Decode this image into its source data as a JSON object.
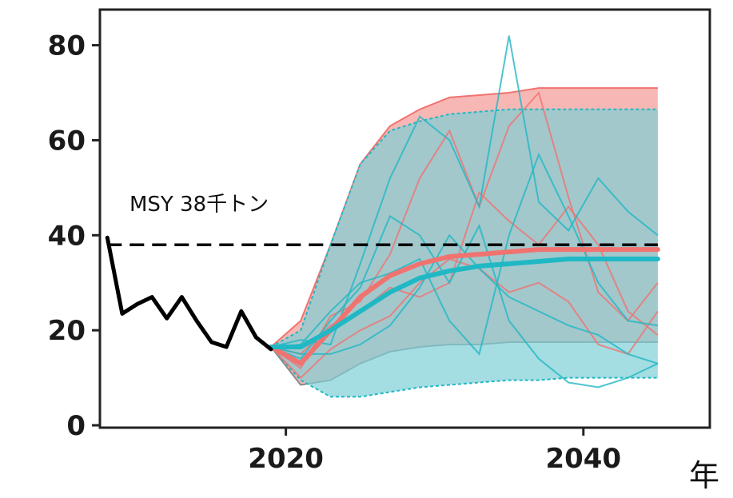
{
  "chart_data": {
    "type": "line",
    "title": "",
    "xlabel": "年",
    "ylabel": "",
    "xlim": [
      2007.5,
      2048.5
    ],
    "ylim": [
      -0.5,
      87.5
    ],
    "x_ticks": [
      2020,
      2040
    ],
    "y_ticks": [
      0,
      20,
      40,
      60,
      80
    ],
    "grid": false,
    "msy": {
      "label": "MSY 38千トン",
      "value": 38
    },
    "historical": {
      "color": "#000000",
      "x": [
        2008,
        2009,
        2010,
        2011,
        2012,
        2013,
        2014,
        2015,
        2016,
        2017,
        2018,
        2019
      ],
      "y": [
        39.5,
        23.5,
        25.5,
        27,
        22.5,
        27,
        22,
        17.5,
        16.5,
        24,
        18.5,
        16
      ]
    },
    "scenarios": [
      {
        "color": "#f07370",
        "band_color": "#f4a09c",
        "x": [
          2019,
          2021,
          2023,
          2025,
          2027,
          2029,
          2031,
          2033,
          2035,
          2037,
          2039,
          2041,
          2043,
          2045
        ],
        "upper": [
          16.5,
          22,
          38,
          55,
          63,
          66.5,
          69,
          69.5,
          70,
          71,
          71,
          71,
          71,
          71
        ],
        "lower": [
          16.5,
          8.5,
          9.5,
          13,
          15.5,
          16.5,
          17,
          17,
          17.5,
          17.5,
          17.5,
          17.5,
          17.5,
          17.5
        ],
        "median": [
          16.5,
          13,
          20,
          27,
          31.5,
          34,
          35.5,
          36,
          36.5,
          37,
          37,
          37,
          37,
          37
        ],
        "trajectories": [
          [
            16.5,
            12,
            23,
            26,
            36,
            52,
            62,
            46,
            63,
            70,
            48,
            28,
            22,
            30
          ],
          [
            16.5,
            15,
            21,
            24,
            29,
            27,
            30,
            49,
            43,
            38,
            46,
            38,
            24,
            19
          ],
          [
            16.5,
            10,
            16,
            20,
            23,
            30,
            35,
            33,
            28,
            30,
            26,
            17,
            15,
            24
          ]
        ]
      },
      {
        "color": "#20b8c4",
        "band_color": "#7dcfd6",
        "x": [
          2019,
          2021,
          2023,
          2025,
          2027,
          2029,
          2031,
          2033,
          2035,
          2037,
          2039,
          2041,
          2043,
          2045
        ],
        "upper": [
          16.5,
          20,
          38,
          55,
          62,
          64,
          65.5,
          66,
          66.5,
          66.5,
          66.5,
          66.5,
          66.5,
          66.5
        ],
        "lower": [
          16.5,
          9.5,
          6,
          6,
          7,
          8,
          8.5,
          9,
          9.5,
          9.5,
          10,
          10,
          10,
          10
        ],
        "median": [
          16.5,
          16.5,
          20,
          24,
          28,
          31,
          32.5,
          33.5,
          34,
          34.5,
          35,
          35,
          35,
          35
        ],
        "trajectories": [
          [
            16.5,
            18,
            17,
            34,
            52,
            65,
            60,
            46,
            82,
            47,
            41,
            52,
            45,
            40
          ],
          [
            16.5,
            14,
            22,
            29,
            44,
            40,
            30,
            42,
            22,
            14,
            9,
            8,
            10,
            13
          ],
          [
            16.5,
            17,
            24,
            30,
            32,
            35,
            22,
            15,
            40,
            57,
            44,
            30,
            22,
            21
          ],
          [
            16.5,
            15,
            15,
            17,
            21,
            29,
            40,
            33,
            27,
            24,
            21,
            19,
            15,
            13
          ]
        ]
      }
    ]
  }
}
